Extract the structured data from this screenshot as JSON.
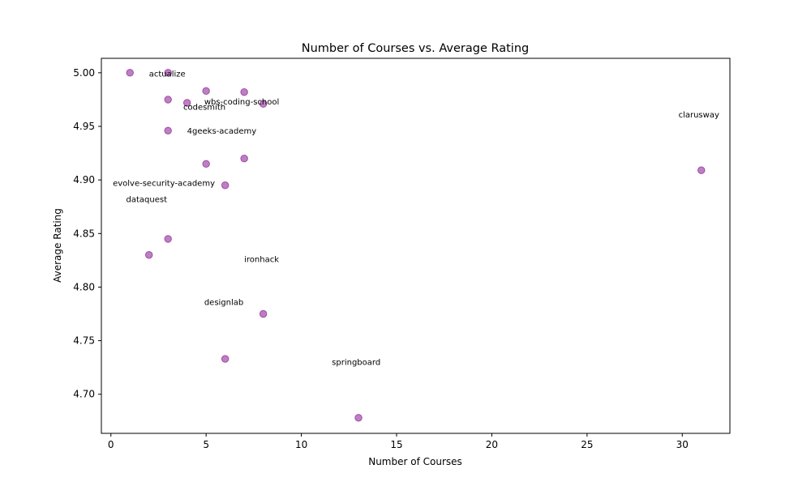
{
  "chart_data": {
    "type": "scatter",
    "title": "Number of Courses vs. Average Rating",
    "xlabel": "Number of Courses",
    "ylabel": "Average Rating",
    "xlim": [
      -0.5,
      32.5
    ],
    "ylim": [
      4.6635,
      5.0135
    ],
    "xticks": [
      0,
      5,
      10,
      15,
      20,
      25,
      30
    ],
    "yticks": [
      4.7,
      4.75,
      4.8,
      4.85,
      4.9,
      4.95,
      5.0
    ],
    "xtick_labels": [
      "0",
      "5",
      "10",
      "15",
      "20",
      "25",
      "30"
    ],
    "ytick_labels": [
      "4.70",
      "4.75",
      "4.80",
      "4.85",
      "4.90",
      "4.95",
      "5.00"
    ],
    "grid": false,
    "marker_color": "#a04aa8",
    "points": [
      {
        "x": 1,
        "y": 5.0
      },
      {
        "x": 3,
        "y": 5.0
      },
      {
        "x": 5,
        "y": 4.983
      },
      {
        "x": 7,
        "y": 4.982
      },
      {
        "x": 3,
        "y": 4.975
      },
      {
        "x": 4,
        "y": 4.972
      },
      {
        "x": 8,
        "y": 4.971
      },
      {
        "x": 3,
        "y": 4.946
      },
      {
        "x": 7,
        "y": 4.92
      },
      {
        "x": 5,
        "y": 4.915
      },
      {
        "x": 31,
        "y": 4.909
      },
      {
        "x": 6,
        "y": 4.895
      },
      {
        "x": 3,
        "y": 4.845
      },
      {
        "x": 2,
        "y": 4.83
      },
      {
        "x": 8,
        "y": 4.775
      },
      {
        "x": 6,
        "y": 4.733
      },
      {
        "x": 13,
        "y": 4.678
      }
    ],
    "annotations": [
      {
        "text": "actualize",
        "x": 2.0,
        "y": 4.999
      },
      {
        "text": "wbs-coding-school",
        "x": 4.9,
        "y": 4.973
      },
      {
        "text": "codesmith",
        "x": 3.8,
        "y": 4.968
      },
      {
        "text": "clarusway",
        "x": 29.8,
        "y": 4.961
      },
      {
        "text": "4geeks-academy",
        "x": 4.0,
        "y": 4.946
      },
      {
        "text": "evolve-security-academy",
        "x": 0.1,
        "y": 4.897
      },
      {
        "text": "dataquest",
        "x": 0.8,
        "y": 4.882
      },
      {
        "text": "ironhack",
        "x": 7.0,
        "y": 4.826
      },
      {
        "text": "designlab",
        "x": 4.9,
        "y": 4.786
      },
      {
        "text": "springboard",
        "x": 11.6,
        "y": 4.73
      }
    ]
  }
}
